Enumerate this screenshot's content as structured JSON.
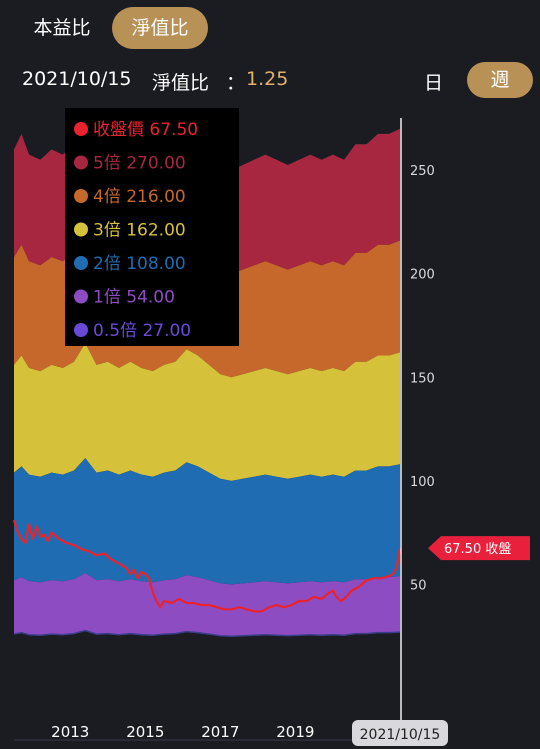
{
  "tabs": {
    "pe_label": "本益比",
    "pb_label": "淨值比"
  },
  "info": {
    "date": "2021/10/15",
    "metric_label": "淨值比",
    "colon": "：",
    "metric_value": "1.25",
    "day_label": "日",
    "week_label": "週"
  },
  "colors": {
    "background": "#1b1b22",
    "accent": "#b89157",
    "value": "#e3b26a",
    "price": "#e8232f",
    "x5": "#a72740",
    "x4": "#c6672b",
    "x3": "#d6c13a",
    "x2": "#1f6cb2",
    "x1": "#8e4cc2",
    "x05": "#6b49d8"
  },
  "chart_data": {
    "type": "area",
    "ylim": [
      0,
      280
    ],
    "yticks": [
      50,
      100,
      150,
      200,
      250
    ],
    "xlim": [
      2011.5,
      2021.79
    ],
    "xticks": [
      {
        "x": 2013,
        "label": "2013"
      },
      {
        "x": 2015,
        "label": "2015"
      },
      {
        "x": 2017,
        "label": "2017"
      },
      {
        "x": 2019,
        "label": "2019"
      }
    ],
    "cursor": {
      "x": 2021.79,
      "label": "2021/10/15"
    },
    "price_tag": "67.50 收盤",
    "legend": [
      {
        "key": "price",
        "label": "收盤價 67.50"
      },
      {
        "key": "x5",
        "label": "5倍 270.00"
      },
      {
        "key": "x4",
        "label": "4倍 216.00"
      },
      {
        "key": "x3",
        "label": "3倍 162.00"
      },
      {
        "key": "x2",
        "label": "2倍 108.00"
      },
      {
        "key": "x1",
        "label": "1倍 54.00"
      },
      {
        "key": "x05",
        "label": "0.5倍 27.00"
      }
    ],
    "book_value_per_share": {
      "x": [
        2011.5,
        2011.7,
        2011.9,
        2012.2,
        2012.5,
        2012.8,
        2013.1,
        2013.4,
        2013.7,
        2014.0,
        2014.3,
        2014.6,
        2014.9,
        2015.2,
        2015.5,
        2015.8,
        2016.1,
        2016.4,
        2016.7,
        2017.0,
        2017.3,
        2017.6,
        2017.9,
        2018.2,
        2018.5,
        2018.8,
        2019.1,
        2019.4,
        2019.7,
        2020.0,
        2020.3,
        2020.6,
        2020.9,
        2021.2,
        2021.5,
        2021.79
      ],
      "values": [
        52.0,
        53.5,
        51.5,
        51.0,
        52.0,
        51.5,
        52.5,
        55.5,
        52.0,
        52.5,
        51.5,
        52.5,
        51.5,
        51.0,
        52.0,
        52.5,
        54.5,
        53.5,
        52.0,
        50.5,
        50.0,
        50.5,
        51.0,
        51.5,
        51.0,
        50.5,
        51.0,
        51.5,
        51.0,
        51.5,
        51.0,
        52.5,
        52.5,
        53.5,
        53.5,
        54.0
      ]
    },
    "bands": [
      {
        "key": "x5",
        "multiple": 5,
        "label": "5倍"
      },
      {
        "key": "x4",
        "multiple": 4,
        "label": "4倍"
      },
      {
        "key": "x3",
        "multiple": 3,
        "label": "3倍"
      },
      {
        "key": "x2",
        "multiple": 2,
        "label": "2倍"
      },
      {
        "key": "x1",
        "multiple": 1,
        "label": "1倍"
      },
      {
        "key": "x05",
        "multiple": 0.5,
        "label": "0.5倍"
      }
    ],
    "series": [
      {
        "name": "收盤價",
        "x": [
          2011.5,
          2011.6,
          2011.7,
          2011.8,
          2011.9,
          2012.0,
          2012.1,
          2012.2,
          2012.3,
          2012.4,
          2012.5,
          2012.7,
          2012.9,
          2013.1,
          2013.3,
          2013.5,
          2013.7,
          2013.9,
          2014.1,
          2014.3,
          2014.5,
          2014.6,
          2014.7,
          2014.8,
          2014.9,
          2015.0,
          2015.1,
          2015.2,
          2015.3,
          2015.4,
          2015.5,
          2015.7,
          2015.9,
          2016.1,
          2016.3,
          2016.5,
          2016.7,
          2016.9,
          2017.1,
          2017.3,
          2017.5,
          2017.7,
          2017.9,
          2018.1,
          2018.3,
          2018.5,
          2018.7,
          2018.9,
          2019.1,
          2019.3,
          2019.5,
          2019.7,
          2019.9,
          2020.0,
          2020.1,
          2020.2,
          2020.3,
          2020.5,
          2020.7,
          2020.9,
          2021.1,
          2021.3,
          2021.5,
          2021.6,
          2021.7,
          2021.79
        ],
        "values": [
          81,
          75,
          72,
          70,
          79,
          72,
          78,
          73,
          74,
          71,
          75,
          72,
          70,
          69,
          67,
          66,
          64,
          65,
          62,
          60,
          58,
          55,
          57,
          53,
          56,
          55,
          53,
          46,
          42,
          39,
          42,
          41,
          43,
          41,
          41,
          40,
          40,
          39,
          38,
          38,
          39,
          38,
          37,
          37,
          39,
          40,
          39,
          40,
          42,
          42,
          44,
          43,
          46,
          47,
          44,
          42,
          43,
          47,
          49,
          52,
          53,
          53,
          54,
          55,
          58,
          67.5
        ]
      }
    ]
  }
}
